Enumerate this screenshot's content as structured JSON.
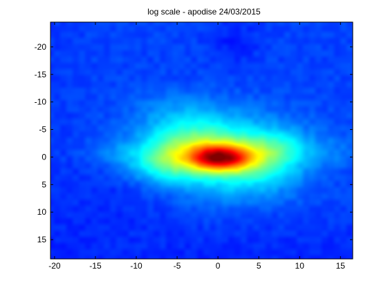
{
  "chart_data": {
    "type": "heatmap",
    "title": "log scale -  apodise 24/03/2015",
    "xlabel": "",
    "ylabel": "",
    "xlim": [
      -20.5,
      16.5
    ],
    "ylim": [
      -24.5,
      18.5
    ],
    "y_direction": "reversed",
    "x_ticks": [
      -20,
      -15,
      -10,
      -5,
      0,
      5,
      10,
      15
    ],
    "y_ticks": [
      -20,
      -15,
      -10,
      -5,
      0,
      5,
      10,
      15
    ],
    "colormap": "jet",
    "grid": false,
    "legend": "none",
    "blobs": [
      {
        "x": 0,
        "y": 0,
        "sx": 4.5,
        "sy": 2.6,
        "level": 0.62
      },
      {
        "x": 0.2,
        "y": 0.1,
        "sx": 2.6,
        "sy": 1.6,
        "level": 0.95
      },
      {
        "x": 1,
        "y": -2.5,
        "sx": 6.5,
        "sy": 4.2,
        "level": 0.45
      },
      {
        "x": -6,
        "y": 1,
        "sx": 2.5,
        "sy": 2.6,
        "level": 0.42
      },
      {
        "x": -4.5,
        "y": -3.5,
        "sx": 3.5,
        "sy": 2.5,
        "level": 0.35
      },
      {
        "x": 6,
        "y": 1,
        "sx": 3.5,
        "sy": 3,
        "level": 0.36
      },
      {
        "x": 7.5,
        "y": -2,
        "sx": 2.5,
        "sy": 2,
        "level": 0.34
      },
      {
        "x": 2,
        "y": 5,
        "sx": 5.5,
        "sy": 3,
        "level": 0.34
      },
      {
        "x": -12,
        "y": -1,
        "sx": 2.8,
        "sy": 1.6,
        "level": 0.27
      },
      {
        "x": -9,
        "y": 1.5,
        "sx": 3,
        "sy": 2.3,
        "level": 0.3
      },
      {
        "x": 14,
        "y": -1,
        "sx": 2.2,
        "sy": 2,
        "level": 0.26
      },
      {
        "x": -7,
        "y": -9.5,
        "sx": 3,
        "sy": 2,
        "level": 0.24
      },
      {
        "x": -3,
        "y": -7,
        "sx": 4,
        "sy": 3,
        "level": 0.28
      },
      {
        "x": 0,
        "y": 9.5,
        "sx": 7,
        "sy": 2.5,
        "level": 0.2
      },
      {
        "x": 10,
        "y": 6,
        "sx": 5,
        "sy": 4,
        "level": 0.18
      },
      {
        "x": -12,
        "y": 7,
        "sx": 5,
        "sy": 4,
        "level": 0.14
      },
      {
        "x": 2,
        "y": -21,
        "sx": 2,
        "sy": 3,
        "level": 0.12
      }
    ],
    "background_level": 0.19
  },
  "colors": {
    "axis": "#000000",
    "background": "#ffffff"
  }
}
